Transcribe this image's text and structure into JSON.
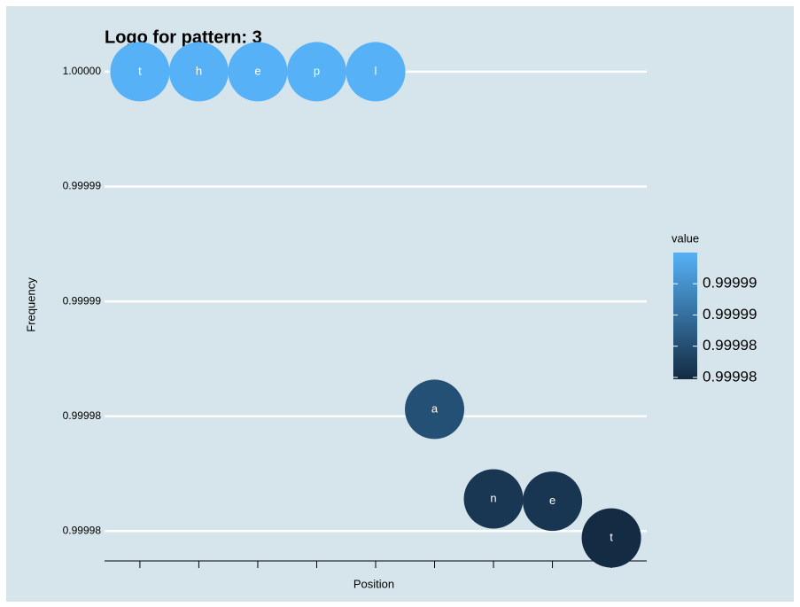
{
  "chart_data": {
    "type": "scatter",
    "title": "Logo for pattern:  3",
    "x_label": "Position",
    "y_label": "Frequency",
    "x": [
      1,
      2,
      3,
      4,
      5,
      6,
      7,
      8,
      9
    ],
    "values": [
      1.0,
      1.0,
      1.0,
      1.0,
      1.0,
      0.9999853,
      0.9999814,
      0.9999813,
      0.9999797
    ],
    "labels": [
      "t",
      "h",
      "e",
      "p",
      "l",
      "a",
      "n",
      "e",
      "t"
    ],
    "xlim": [
      0.4,
      9.6
    ],
    "xticks": [
      1,
      2,
      3,
      4,
      5,
      6,
      7,
      8,
      9
    ],
    "ylim": [
      0.9999787,
      1.000001
    ],
    "yticks": [
      {
        "value": 1.0,
        "label": "1.00000"
      },
      {
        "value": 0.999995,
        "label": "0.99999"
      },
      0.99999,
      {
        "value": 0.999985,
        "label": "0.99998"
      },
      0.99998
    ],
    "grid": true,
    "colorbar": {
      "title": "value",
      "lim": [
        0.9999797,
        1.0
      ],
      "low": "#132B43",
      "high": "#56B1F7",
      "ticks": [
        {
          "value": 0.999995,
          "label": "0.99999"
        },
        0.99999,
        {
          "value": 0.999985,
          "label": "0.99998"
        },
        0.99998
      ]
    }
  }
}
